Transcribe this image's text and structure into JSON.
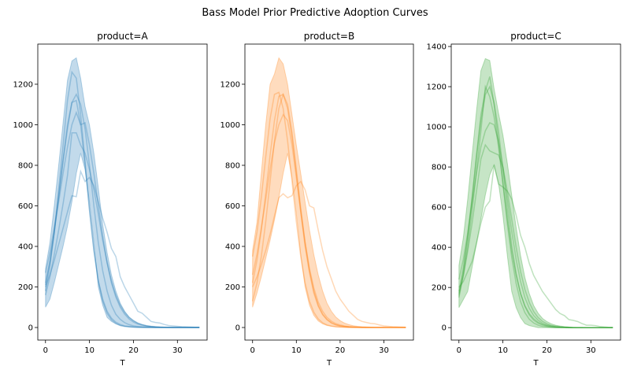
{
  "chart_data": {
    "title": "Bass Model Prior Predictive Adoption Curves",
    "type": "line",
    "x": [
      0,
      1,
      2,
      3,
      4,
      5,
      6,
      7,
      8,
      9,
      10,
      11,
      12,
      13,
      14,
      15,
      16,
      17,
      18,
      19,
      20,
      21,
      22,
      23,
      24,
      25,
      26,
      27,
      28,
      29,
      30,
      31,
      32,
      33,
      34,
      35
    ],
    "panels": [
      {
        "title": "product=A",
        "xlabel": "T",
        "color": "#1f77b4",
        "xlim": [
          -1.75,
          36.75
        ],
        "ylim": [
          -62,
          1398
        ],
        "xticks": [
          0,
          10,
          20,
          30
        ],
        "yticks": [
          0,
          200,
          400,
          600,
          800,
          1000,
          1200
        ],
        "band": {
          "upper": [
            290,
            420,
            600,
            800,
            1010,
            1220,
            1315,
            1330,
            1230,
            1090,
            1000,
            860,
            690,
            510,
            370,
            260,
            180,
            120,
            80,
            52,
            34,
            22,
            14,
            9,
            6,
            4,
            3,
            2,
            1,
            1,
            1,
            0,
            0,
            0,
            0,
            0
          ],
          "lower": [
            100,
            140,
            220,
            310,
            400,
            500,
            620,
            760,
            860,
            780,
            620,
            420,
            200,
            110,
            50,
            30,
            18,
            10,
            6,
            3,
            2,
            1,
            0,
            0,
            0,
            0,
            0,
            0,
            0,
            0,
            0,
            0,
            0,
            0,
            0,
            0
          ]
        },
        "samples": [
          [
            220,
            330,
            470,
            640,
            820,
            980,
            1110,
            1150,
            1100,
            980,
            800,
            600,
            420,
            280,
            180,
            110,
            65,
            40,
            24,
            14,
            8,
            5,
            3,
            2,
            1,
            0,
            0,
            0,
            0,
            0,
            0,
            0,
            0,
            0,
            0,
            0
          ],
          [
            180,
            300,
            470,
            680,
            900,
            1120,
            1260,
            1230,
            1050,
            820,
            580,
            380,
            230,
            140,
            80,
            46,
            26,
            15,
            8,
            5,
            3,
            2,
            1,
            0,
            0,
            0,
            0,
            0,
            0,
            0,
            0,
            0,
            0,
            0,
            0,
            0
          ],
          [
            200,
            260,
            330,
            410,
            490,
            570,
            650,
            645,
            770,
            720,
            740,
            700,
            620,
            540,
            470,
            390,
            350,
            250,
            200,
            160,
            120,
            80,
            70,
            50,
            30,
            25,
            22,
            15,
            10,
            8,
            6,
            4,
            3,
            2,
            1,
            1
          ],
          [
            160,
            250,
            360,
            480,
            610,
            750,
            960,
            960,
            900,
            860,
            780,
            680,
            560,
            430,
            320,
            230,
            160,
            110,
            75,
            50,
            34,
            22,
            14,
            9,
            6,
            4,
            2,
            1,
            1,
            0,
            0,
            0,
            0,
            0,
            0,
            0
          ],
          [
            270,
            370,
            490,
            620,
            760,
            890,
            1000,
            1060,
            1000,
            1010,
            900,
            760,
            600,
            450,
            320,
            220,
            150,
            100,
            66,
            42,
            27,
            17,
            11,
            7,
            4,
            2,
            1,
            1,
            0,
            0,
            0,
            0,
            0,
            0,
            0,
            0
          ],
          [
            210,
            320,
            470,
            650,
            830,
            1000,
            1110,
            1120,
            1000,
            800,
            580,
            380,
            230,
            130,
            70,
            38,
            20,
            10,
            5,
            3,
            1,
            0,
            0,
            0,
            0,
            0,
            0,
            0,
            0,
            0,
            0,
            0,
            0,
            0,
            0,
            0
          ]
        ]
      },
      {
        "title": "product=B",
        "xlabel": "T",
        "color": "#ff7f0e",
        "xlim": [
          -1.75,
          36.75
        ],
        "ylim": [
          -62,
          1398
        ],
        "xticks": [
          0,
          10,
          20,
          30
        ],
        "yticks": [
          0,
          200,
          400,
          600,
          800,
          1000,
          1200
        ],
        "band": {
          "upper": [
            380,
            520,
            760,
            1000,
            1200,
            1250,
            1330,
            1300,
            1200,
            1050,
            900,
            760,
            620,
            480,
            360,
            260,
            180,
            120,
            80,
            52,
            34,
            22,
            14,
            9,
            6,
            4,
            3,
            2,
            1,
            1,
            1,
            0,
            0,
            0,
            0,
            0
          ],
          "lower": [
            100,
            170,
            250,
            340,
            430,
            530,
            640,
            760,
            860,
            740,
            560,
            360,
            200,
            110,
            60,
            32,
            18,
            10,
            6,
            3,
            2,
            1,
            0,
            0,
            0,
            0,
            0,
            0,
            0,
            0,
            0,
            0,
            0,
            0,
            0,
            0
          ]
        },
        "samples": [
          [
            220,
            330,
            480,
            660,
            850,
            1020,
            1140,
            1150,
            1080,
            940,
            760,
            570,
            400,
            270,
            170,
            105,
            63,
            38,
            22,
            13,
            8,
            5,
            3,
            2,
            1,
            0,
            0,
            0,
            0,
            0,
            0,
            0,
            0,
            0,
            0,
            0
          ],
          [
            350,
            470,
            640,
            840,
            1030,
            1150,
            1160,
            1080,
            920,
            720,
            520,
            350,
            220,
            130,
            75,
            42,
            23,
            13,
            7,
            4,
            2,
            1,
            0,
            0,
            0,
            0,
            0,
            0,
            0,
            0,
            0,
            0,
            0,
            0,
            0,
            0
          ],
          [
            200,
            250,
            310,
            380,
            460,
            550,
            640,
            660,
            640,
            650,
            700,
            720,
            680,
            600,
            590,
            480,
            380,
            300,
            240,
            180,
            140,
            110,
            80,
            60,
            40,
            30,
            25,
            20,
            18,
            12,
            8,
            6,
            4,
            3,
            2,
            1
          ],
          [
            130,
            220,
            350,
            520,
            720,
            920,
            1080,
            1150,
            1100,
            960,
            780,
            590,
            420,
            280,
            180,
            110,
            66,
            40,
            24,
            14,
            8,
            5,
            3,
            2,
            1,
            0,
            0,
            0,
            0,
            0,
            0,
            0,
            0,
            0,
            0,
            0
          ],
          [
            260,
            360,
            490,
            630,
            780,
            910,
            1000,
            1050,
            1020,
            900,
            740,
            570,
            420,
            290,
            195,
            125,
            80,
            50,
            31,
            19,
            12,
            7,
            4,
            2,
            1,
            1,
            0,
            0,
            0,
            0,
            0,
            0,
            0,
            0,
            0,
            0
          ]
        ]
      },
      {
        "title": "product=C",
        "xlabel": "T",
        "color": "#2ca02c",
        "xlim": [
          -1.75,
          36.75
        ],
        "ylim": [
          -62,
          1412
        ],
        "xticks": [
          0,
          10,
          20,
          30
        ],
        "yticks": [
          0,
          200,
          400,
          600,
          800,
          1000,
          1200,
          1400
        ],
        "band": {
          "upper": [
            310,
            450,
            640,
            860,
            1080,
            1280,
            1340,
            1330,
            1190,
            1070,
            960,
            820,
            660,
            500,
            360,
            250,
            170,
            110,
            72,
            46,
            30,
            19,
            12,
            8,
            5,
            3,
            2,
            1,
            1,
            0,
            0,
            0,
            0,
            0,
            0,
            0
          ],
          "lower": [
            100,
            140,
            180,
            300,
            420,
            540,
            660,
            760,
            810,
            720,
            560,
            360,
            180,
            100,
            50,
            20,
            10,
            5,
            0,
            0,
            0,
            0,
            0,
            0,
            0,
            0,
            0,
            0,
            0,
            0,
            0,
            0,
            0,
            0,
            0,
            0
          ]
        },
        "samples": [
          [
            180,
            300,
            460,
            650,
            850,
            1030,
            1160,
            1200,
            1120,
            980,
            790,
            590,
            410,
            270,
            170,
            105,
            63,
            37,
            22,
            13,
            7,
            4,
            2,
            1,
            1,
            0,
            0,
            0,
            0,
            0,
            0,
            0,
            0,
            0,
            0,
            0
          ],
          [
            150,
            260,
            400,
            580,
            780,
            980,
            1200,
            1150,
            1050,
            900,
            720,
            540,
            380,
            260,
            170,
            110,
            70,
            44,
            27,
            16,
            10,
            6,
            3,
            2,
            1,
            0,
            0,
            0,
            0,
            0,
            0,
            0,
            0,
            0,
            0,
            0
          ],
          [
            200,
            230,
            280,
            330,
            420,
            520,
            600,
            630,
            810,
            715,
            700,
            680,
            640,
            560,
            460,
            400,
            320,
            260,
            220,
            180,
            150,
            120,
            90,
            70,
            60,
            40,
            36,
            30,
            20,
            12,
            12,
            10,
            6,
            4,
            2,
            1
          ],
          [
            240,
            340,
            470,
            620,
            770,
            900,
            980,
            1020,
            1010,
            930,
            800,
            640,
            480,
            340,
            230,
            150,
            96,
            60,
            37,
            22,
            13,
            8,
            5,
            3,
            2,
            1,
            0,
            0,
            0,
            0,
            0,
            0,
            0,
            0,
            0,
            0
          ],
          [
            170,
            260,
            380,
            520,
            680,
            840,
            910,
            880,
            870,
            860,
            800,
            680,
            540,
            400,
            280,
            190,
            125,
            80,
            50,
            31,
            19,
            11,
            7,
            4,
            2,
            1,
            0,
            0,
            0,
            0,
            0,
            0,
            0,
            0,
            0,
            0
          ],
          [
            160,
            280,
            440,
            640,
            860,
            1060,
            1180,
            1250,
            1110,
            930,
            720,
            520,
            350,
            220,
            130,
            75,
            42,
            23,
            12,
            6,
            3,
            1,
            0,
            0,
            0,
            0,
            0,
            0,
            0,
            0,
            0,
            0,
            0,
            0,
            0,
            0
          ]
        ]
      }
    ]
  }
}
